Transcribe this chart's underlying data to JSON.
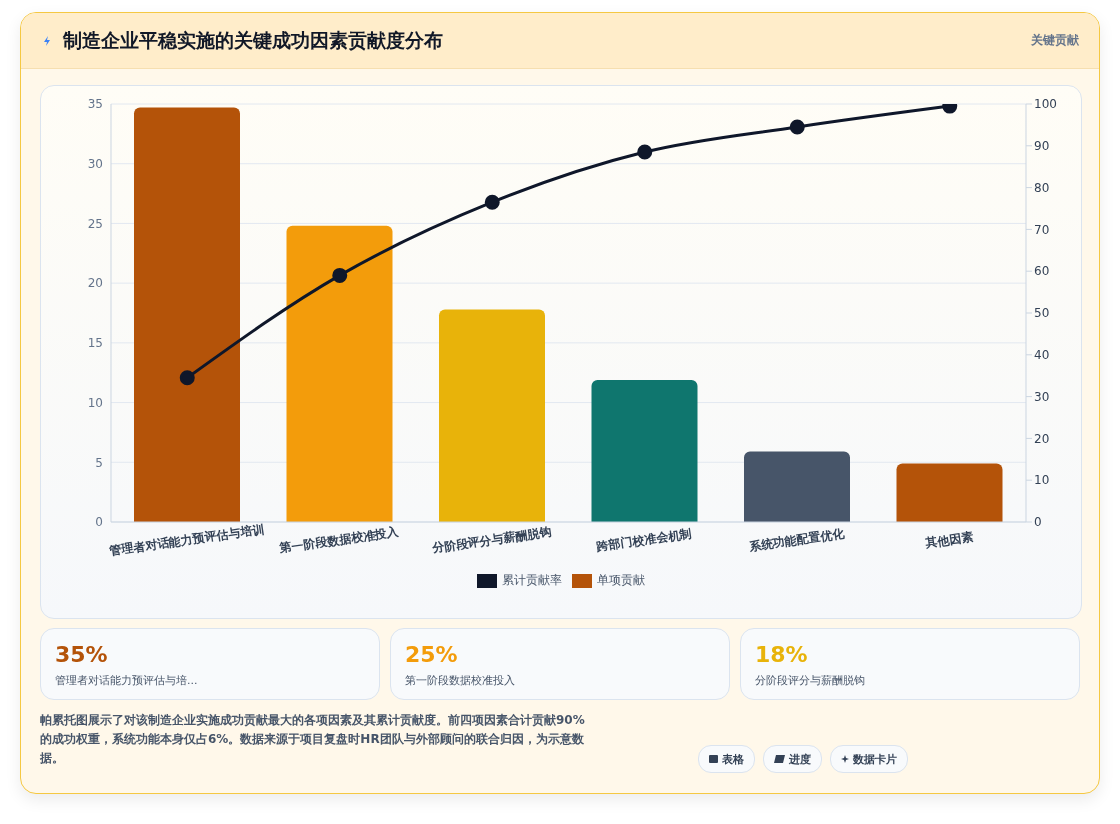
{
  "chart_data": {
    "type": "bar",
    "title": "制造企业平稳实施的关键成功因素贡献度分布",
    "categories": [
      "管理者对话能力预评估与培训",
      "第一阶段数据校准投入",
      "分阶段评分与薪酬脱钩",
      "跨部门校准会机制",
      "系统功能配置优化",
      "其他因素"
    ],
    "series": [
      {
        "name": "单项贡献",
        "color": "#b45309",
        "colors": [
          "#b45309",
          "#f39c0b",
          "#e8b30a",
          "#0f766e",
          "#475569",
          "#b45309"
        ],
        "values": [
          34.7,
          24.8,
          17.8,
          11.9,
          5.9,
          4.9
        ]
      },
      {
        "name": "累计贡献率",
        "type": "line",
        "axis": "y2",
        "color": "#0f172a",
        "marker": "circle",
        "line_style": "solid",
        "values": [
          34.5,
          59,
          76.5,
          88.5,
          94.5,
          99.5
        ]
      }
    ],
    "ylim": [
      0,
      35
    ],
    "yticks": [
      0,
      5,
      10,
      15,
      20,
      25,
      30,
      35
    ],
    "y2lim": [
      0,
      100
    ],
    "y2ticks": [
      0,
      10,
      20,
      30,
      40,
      50,
      60,
      70,
      80,
      90,
      100
    ],
    "grid": "y",
    "legend": "bottom",
    "annotations": [
      "关键贡献",
      "35%",
      "25%",
      "18%",
      "管理者对话能力预评估与培...",
      "第一阶段数据校准投入",
      "分阶段评分与薪酬脱钩",
      "帕累托图展示了对该制造企业实施成功贡献最大的各项因素及其累计贡献度。前四项因素合计贡献90%的成功权重，系统功能本身仅占6%。数据来源于项目复盘时HR团队与外部顾问的联合归因，为示意数据。",
      "表格",
      "进度",
      "数据卡片"
    ]
  }
}
